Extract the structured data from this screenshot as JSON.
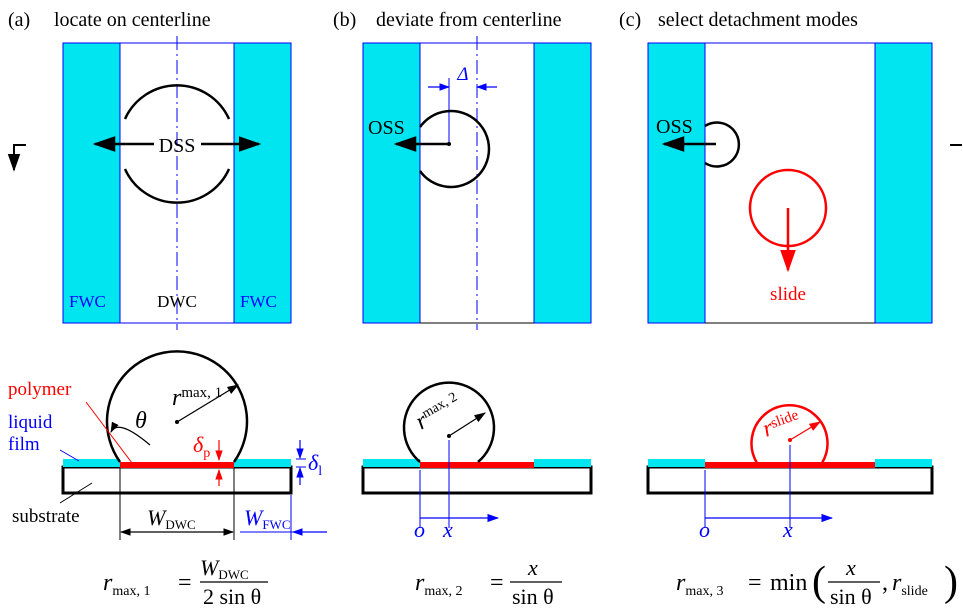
{
  "panels": {
    "a": {
      "tag": "(a)",
      "title": "locate on centerline",
      "dss": "DSS",
      "fwc_left": "FWC",
      "dwc": "DWC",
      "fwc_right": "FWC"
    },
    "b": {
      "tag": "(b)",
      "title": "deviate from centerline",
      "oss": "OSS",
      "delta": "Δ"
    },
    "c": {
      "tag": "(c)",
      "title": "select detachment modes",
      "oss": "OSS",
      "slide": "slide"
    }
  },
  "cross_section": {
    "a": {
      "polymer": "polymer",
      "liquid": "liquid",
      "film": "film",
      "substrate": "substrate",
      "theta": "θ",
      "r_main": "r",
      "r_sub": "max, 1",
      "dp_main": "δ",
      "dp_sub": "p",
      "dl_main": "δ",
      "dl_sub": "l",
      "wdwc_main": "W",
      "wdwc_sub": "DWC",
      "wfwc_main": "W",
      "wfwc_sub": "FWC"
    },
    "b": {
      "r_main": "r",
      "r_sub": "max, 2",
      "o": "o",
      "x": "x"
    },
    "c": {
      "r_main": "r",
      "r_sub": "slide",
      "o": "o",
      "x": "x"
    }
  },
  "formulas": {
    "a": {
      "lhs": "r",
      "lhs_sub": "max, 1",
      "num": "W",
      "num_sub": "DWC",
      "den": "2 sin θ"
    },
    "b": {
      "lhs": "r",
      "lhs_sub": "max, 2",
      "num": "x",
      "den": "sin θ"
    },
    "c": {
      "lhs": "r",
      "lhs_sub": "max, 3",
      "fn": "min",
      "num": "x",
      "den": "sin θ",
      "arg2": "r",
      "arg2_sub": "slide"
    }
  },
  "colors": {
    "cyan": "#00e5f0",
    "red": "#ff0000",
    "blue": "#0000ff",
    "black": "#000000"
  }
}
